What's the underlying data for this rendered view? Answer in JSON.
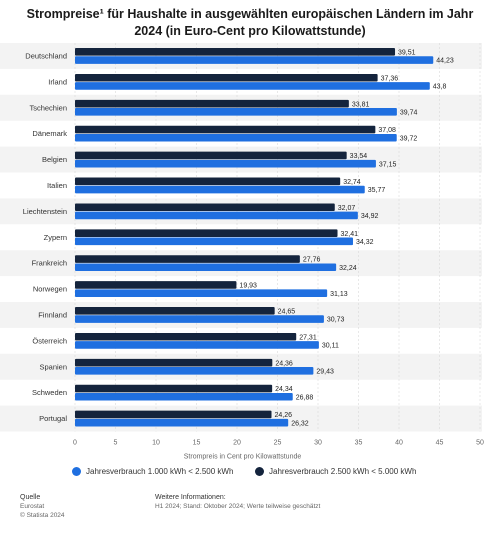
{
  "chart_data": {
    "type": "bar",
    "orientation": "horizontal",
    "title": "Strompreise¹ für Haushalte in ausgewählten europäischen Ländern im Jahr 2024 (in Euro-Cent pro Kilowattstunde)",
    "xlabel": "Strompreis in Cent pro Kilowattstunde",
    "xlim": [
      0,
      50
    ],
    "xticks": [
      "0",
      "5",
      "10",
      "15",
      "20",
      "25",
      "30",
      "35",
      "40",
      "45",
      "50"
    ],
    "categories": [
      "Deutschland",
      "Irland",
      "Tschechien",
      "Dänemark",
      "Belgien",
      "Italien",
      "Liechtenstein",
      "Zypern",
      "Frankreich",
      "Norwegen",
      "Finnland",
      "Österreich",
      "Spanien",
      "Schweden",
      "Portugal"
    ],
    "series": [
      {
        "name": "Jahresverbrauch 2.500 kWh < 5.000 kWh",
        "color": "#14243d",
        "values": [
          39.51,
          37.36,
          33.81,
          37.08,
          33.54,
          32.74,
          32.07,
          32.41,
          27.76,
          19.93,
          24.65,
          27.31,
          24.36,
          24.34,
          24.26
        ],
        "labels": [
          "39,51",
          "37,36",
          "33,81",
          "37,08",
          "33,54",
          "32,74",
          "32,07",
          "32,41",
          "27,76",
          "19,93",
          "24,65",
          "27,31",
          "24,36",
          "24,34",
          "24,26"
        ]
      },
      {
        "name": "Jahresverbrauch 1.000 kWh < 2.500 kWh",
        "color": "#1f6fe0",
        "values": [
          44.23,
          43.8,
          39.74,
          39.72,
          37.15,
          35.77,
          34.92,
          34.32,
          32.24,
          31.13,
          30.73,
          30.11,
          29.43,
          26.88,
          26.32
        ],
        "labels": [
          "44,23",
          "43,8",
          "39,74",
          "39,72",
          "37,15",
          "35,77",
          "34,92",
          "34,32",
          "32,24",
          "31,13",
          "30,73",
          "30,11",
          "29,43",
          "26,88",
          "26,32"
        ]
      }
    ],
    "legend": "bottom",
    "grid": true
  },
  "legend": {
    "item1": "Jahresverbrauch 1.000 kWh < 2.500 kWh",
    "item2": "Jahresverbrauch 2.500 kWh < 5.000 kWh",
    "color1": "#1f6fe0",
    "color2": "#14243d"
  },
  "footer": {
    "source_heading": "Quelle",
    "source_line1": "Eurostat",
    "source_line2": "© Statista 2024",
    "info_heading": "Weitere Informationen:",
    "info_line1": "H1 2024; Stand: Oktober 2024; Werte teilweise geschätzt"
  }
}
